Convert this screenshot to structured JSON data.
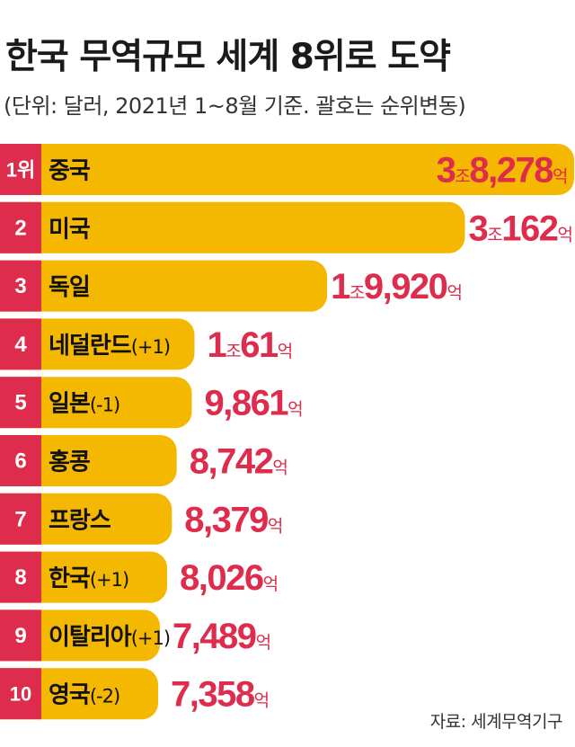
{
  "title": "한국 무역규모 세계 8위로 도약",
  "subtitle": "(단위: 달러, 2021년 1~8월 기준. 괄호는 순위변동)",
  "source": "자료: 세계무역기구",
  "colors": {
    "bar": "#F5B800",
    "rank_box": "#DE2C4C",
    "value_text": "#DE2C4C",
    "label_text": "#111111",
    "rank_text": "#FFFFFF"
  },
  "chart_data": {
    "type": "bar",
    "orientation": "horizontal",
    "title": "한국 무역규모 세계 8위로 도약",
    "subtitle": "(단위: 달러, 2021년 1~8월 기준. 괄호는 순위변동)",
    "unit_eok": "억",
    "unit_jo": "조",
    "rows": [
      {
        "rank": "1위",
        "name": "중국",
        "change": "",
        "value": 38278,
        "jo": "3",
        "eok": "8,278"
      },
      {
        "rank": "2",
        "name": "미국",
        "change": "",
        "value": 30162,
        "jo": "3",
        "eok": "162"
      },
      {
        "rank": "3",
        "name": "독일",
        "change": "",
        "value": 19920,
        "jo": "1",
        "eok": "9,920"
      },
      {
        "rank": "4",
        "name": "네덜란드",
        "change": "(+1)",
        "value": 10061,
        "jo": "1",
        "eok": "61"
      },
      {
        "rank": "5",
        "name": "일본",
        "change": "(-1)",
        "value": 9861,
        "jo": "",
        "eok": "9,861"
      },
      {
        "rank": "6",
        "name": "홍콩",
        "change": "",
        "value": 8742,
        "jo": "",
        "eok": "8,742"
      },
      {
        "rank": "7",
        "name": "프랑스",
        "change": "",
        "value": 8379,
        "jo": "",
        "eok": "8,379"
      },
      {
        "rank": "8",
        "name": "한국",
        "change": "(+1)",
        "value": 8026,
        "jo": "",
        "eok": "8,026"
      },
      {
        "rank": "9",
        "name": "이탈리아",
        "change": "(+1)",
        "value": 7489,
        "jo": "",
        "eok": "7,489"
      },
      {
        "rank": "10",
        "name": "영국",
        "change": "(-2)",
        "value": 7358,
        "jo": "",
        "eok": "7,358"
      }
    ]
  }
}
